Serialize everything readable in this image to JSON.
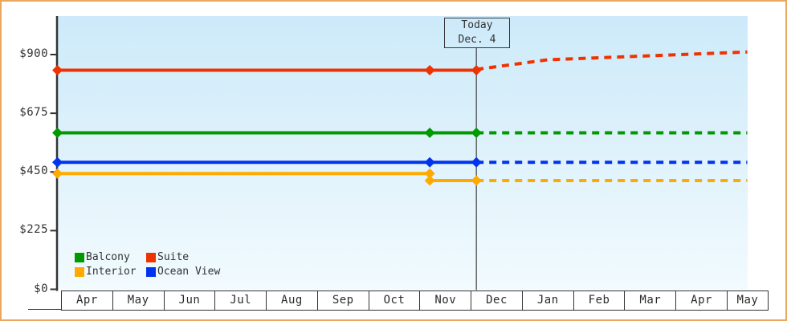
{
  "chart_data": {
    "type": "line",
    "title": "",
    "description": "Cruise cabin price history by category with dashed forecast after today marker",
    "y_axis": {
      "tick_values": [
        0,
        225,
        450,
        675,
        900
      ],
      "tick_labels": [
        "$0",
        "$225",
        "$450",
        "$675",
        "$900"
      ],
      "range": [
        0,
        1050
      ],
      "grid": false
    },
    "x_axis": {
      "months": [
        "Apr",
        "May",
        "Jun",
        "Jul",
        "Aug",
        "Sep",
        "Oct",
        "Nov",
        "Dec",
        "Jan",
        "Feb",
        "Mar",
        "Apr",
        "May"
      ]
    },
    "today": {
      "line1": "Today",
      "line2": "Dec. 4",
      "month_pos": 8.11
    },
    "series": [
      {
        "name": "Interior",
        "color": "#ffaa00",
        "solid": [
          [
            -0.07,
            444
          ],
          [
            7.2,
            444
          ],
          [
            7.2,
            417
          ],
          [
            8.11,
            417
          ]
        ],
        "forecast": [
          [
            8.11,
            417
          ],
          [
            13.4,
            417
          ]
        ],
        "markers": [
          [
            -0.07,
            444
          ],
          [
            7.2,
            444
          ],
          [
            7.2,
            417
          ],
          [
            8.11,
            417
          ]
        ]
      },
      {
        "name": "Ocean View",
        "color": "#0033ee",
        "solid": [
          [
            -0.07,
            487
          ],
          [
            7.2,
            487
          ],
          [
            8.11,
            487
          ]
        ],
        "forecast": [
          [
            8.11,
            487
          ],
          [
            13.4,
            487
          ]
        ],
        "markers": [
          [
            -0.07,
            487
          ],
          [
            7.2,
            487
          ],
          [
            8.11,
            487
          ]
        ]
      },
      {
        "name": "Balcony",
        "color": "#009900",
        "solid": [
          [
            -0.07,
            600
          ],
          [
            7.2,
            600
          ],
          [
            8.11,
            600
          ]
        ],
        "forecast": [
          [
            8.11,
            600
          ],
          [
            13.4,
            600
          ]
        ],
        "markers": [
          [
            -0.07,
            600
          ],
          [
            7.2,
            600
          ],
          [
            8.11,
            600
          ]
        ]
      },
      {
        "name": "Suite",
        "color": "#ee3300",
        "solid": [
          [
            -0.07,
            840
          ],
          [
            7.2,
            840
          ],
          [
            8.11,
            840
          ]
        ],
        "forecast": [
          [
            8.11,
            843
          ],
          [
            9.5,
            880
          ],
          [
            13.4,
            910
          ]
        ],
        "markers": [
          [
            -0.07,
            840
          ],
          [
            7.2,
            840
          ],
          [
            8.11,
            840
          ]
        ]
      }
    ],
    "legend": [
      {
        "label": "Balcony",
        "color": "#009900"
      },
      {
        "label": "Suite",
        "color": "#ee3300"
      },
      {
        "label": "Interior",
        "color": "#ffaa00"
      },
      {
        "label": "Ocean View",
        "color": "#0033ee"
      }
    ],
    "legend_position": "bottom-left"
  },
  "colors": {
    "frame_border": "#e8a85f",
    "axis": "#333333",
    "today_line": "#444444",
    "plot_bg_top": "#cdeafa",
    "plot_bg_bottom": "#f2fbfe"
  }
}
